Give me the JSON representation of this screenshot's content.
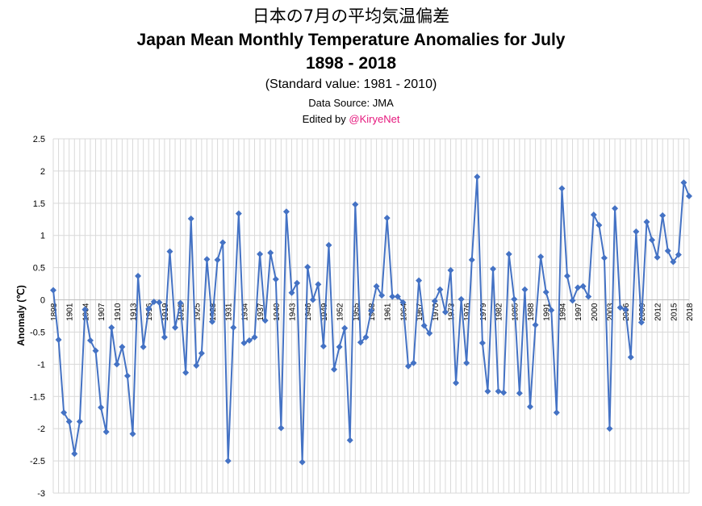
{
  "header": {
    "title_jp": "日本の7月の平均気温偏差",
    "title_en": "Japan Mean Monthly Temperature Anomalies for July",
    "years": "1898 - 2018",
    "standard": "(Standard value: 1981 - 2010)",
    "source": "Data Source: JMA",
    "edited_prefix": "Edited by ",
    "edited_handle": "@KiryeNet"
  },
  "colors": {
    "series": "#4472c4",
    "grid": "#d9d9d9",
    "handle": "#e6197e"
  },
  "chart_data": {
    "type": "line",
    "title": "Japan Mean Monthly Temperature Anomalies for July",
    "xlabel": "",
    "ylabel": "Anomaly (℃)",
    "ylim": [
      -3,
      2.5
    ],
    "yticks": [
      "2.5",
      "2",
      "1.5",
      "1",
      "0.5",
      "0",
      "-0.5",
      "-1",
      "-1.5",
      "-2",
      "-2.5",
      "-3"
    ],
    "xticks": [
      "1898",
      "1901",
      "1904",
      "1907",
      "1910",
      "1913",
      "1916",
      "1919",
      "1922",
      "1925",
      "1928",
      "1931",
      "1934",
      "1937",
      "1940",
      "1943",
      "1946",
      "1949",
      "1952",
      "1955",
      "1958",
      "1961",
      "1964",
      "1967",
      "1970",
      "1973",
      "1976",
      "1979",
      "1982",
      "1985",
      "1988",
      "1991",
      "1994",
      "1997",
      "2000",
      "2003",
      "2006",
      "2009",
      "2012",
      "2015",
      "2018"
    ],
    "grid": true,
    "marker": "diamond",
    "x": [
      1898,
      1899,
      1900,
      1901,
      1902,
      1903,
      1904,
      1905,
      1906,
      1907,
      1908,
      1909,
      1910,
      1911,
      1912,
      1913,
      1914,
      1915,
      1916,
      1917,
      1918,
      1919,
      1920,
      1921,
      1922,
      1923,
      1924,
      1925,
      1926,
      1927,
      1928,
      1929,
      1930,
      1931,
      1932,
      1933,
      1934,
      1935,
      1936,
      1937,
      1938,
      1939,
      1940,
      1941,
      1942,
      1943,
      1944,
      1945,
      1946,
      1947,
      1948,
      1949,
      1950,
      1951,
      1952,
      1953,
      1954,
      1955,
      1956,
      1957,
      1958,
      1959,
      1960,
      1961,
      1962,
      1963,
      1964,
      1965,
      1966,
      1967,
      1968,
      1969,
      1970,
      1971,
      1972,
      1973,
      1974,
      1975,
      1976,
      1977,
      1978,
      1979,
      1980,
      1981,
      1982,
      1983,
      1984,
      1985,
      1986,
      1987,
      1988,
      1989,
      1990,
      1991,
      1992,
      1993,
      1994,
      1995,
      1996,
      1997,
      1998,
      1999,
      2000,
      2001,
      2002,
      2003,
      2004,
      2005,
      2006,
      2007,
      2008,
      2009,
      2010,
      2011,
      2012,
      2013,
      2014,
      2015,
      2016,
      2017,
      2018
    ],
    "values": [
      0.15,
      -0.62,
      -1.75,
      -1.89,
      -2.39,
      -1.89,
      -0.15,
      -0.63,
      -0.79,
      -1.67,
      -2.05,
      -0.43,
      -1.0,
      -0.73,
      -1.18,
      -2.08,
      0.37,
      -0.73,
      -0.14,
      -0.03,
      -0.04,
      -0.58,
      0.75,
      -0.43,
      -0.05,
      -1.13,
      1.26,
      -1.02,
      -0.83,
      0.63,
      -0.34,
      0.62,
      0.89,
      -2.5,
      -0.43,
      1.34,
      -0.67,
      -0.63,
      -0.58,
      0.71,
      -0.32,
      0.73,
      0.32,
      -1.99,
      1.37,
      0.11,
      0.26,
      -2.52,
      0.51,
      0.0,
      0.24,
      -0.72,
      0.85,
      -1.08,
      -0.73,
      -0.44,
      -2.18,
      1.48,
      -0.66,
      -0.58,
      -0.17,
      0.21,
      0.07,
      1.27,
      0.05,
      0.05,
      -0.04,
      -1.03,
      -0.98,
      0.3,
      -0.4,
      -0.52,
      -0.02,
      0.16,
      -0.19,
      0.46,
      -1.29,
      0.01,
      -0.98,
      0.62,
      1.91,
      -0.67,
      -1.42,
      0.48,
      -1.42,
      -1.44,
      0.71,
      0.01,
      -1.45,
      0.16,
      -1.66,
      -0.39,
      0.67,
      0.12,
      -0.16,
      -1.75,
      1.73,
      0.37,
      -0.01,
      0.19,
      0.21,
      0.05,
      1.32,
      1.16,
      0.65,
      -2.0,
      1.42,
      -0.12,
      -0.15,
      -0.89,
      1.06,
      -0.35,
      1.21,
      0.93,
      0.66,
      1.31,
      0.76,
      0.59,
      0.7,
      1.82,
      1.61
    ]
  }
}
